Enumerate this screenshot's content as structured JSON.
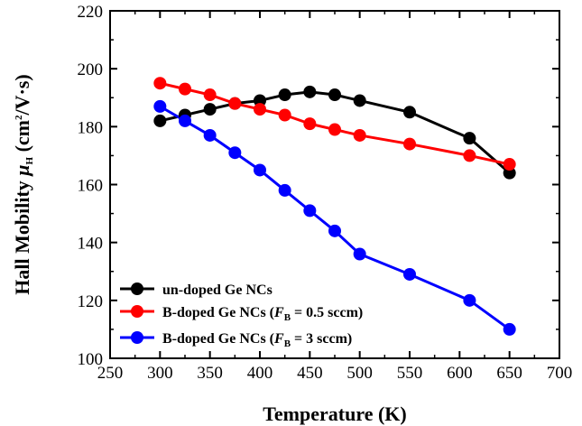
{
  "chart_data": {
    "type": "line",
    "xlabel": "Temperature (K)",
    "ylabel": {
      "prefix": "Hall Mobility ",
      "symbol": "μ",
      "symbol_sub": "H",
      "unit_open": " (cm",
      "unit_sup": "2",
      "unit_close": "/V·s)"
    },
    "xlim": [
      250,
      700
    ],
    "ylim": [
      100,
      220
    ],
    "x_ticks": [
      "250",
      "300",
      "350",
      "400",
      "450",
      "500",
      "550",
      "600",
      "650",
      "700"
    ],
    "y_ticks": [
      "100",
      "120",
      "140",
      "160",
      "180",
      "200",
      "220"
    ],
    "grid": false,
    "legend_position": "bottom-left",
    "series": [
      {
        "name": "un-doped Ge NCs",
        "legend": {
          "text": "un-doped Ge NCs"
        },
        "color": "#000000",
        "x": [
          300,
          325,
          350,
          375,
          400,
          425,
          450,
          475,
          500,
          550,
          610,
          650
        ],
        "y": [
          182,
          184,
          186,
          188,
          189,
          191,
          192,
          191,
          189,
          185,
          176,
          164
        ]
      },
      {
        "name": "B-doped Ge NCs (FB = 0.5 sccm)",
        "legend": {
          "pre": "B-doped Ge NCs (",
          "var": "F",
          "sub": "B",
          "post": " = 0.5 sccm)"
        },
        "color": "#ff0000",
        "x": [
          300,
          325,
          350,
          375,
          400,
          425,
          450,
          475,
          500,
          550,
          610,
          650
        ],
        "y": [
          195,
          193,
          191,
          188,
          186,
          184,
          181,
          179,
          177,
          174,
          170,
          167
        ]
      },
      {
        "name": "B-doped Ge NCs (FB = 3 sccm)",
        "legend": {
          "pre": "B-doped Ge NCs (",
          "var": "F",
          "sub": "B",
          "post": " = 3 sccm)"
        },
        "color": "#0000ff",
        "x": [
          300,
          325,
          350,
          375,
          400,
          425,
          450,
          475,
          500,
          550,
          610,
          650
        ],
        "y": [
          187,
          182,
          177,
          171,
          165,
          158,
          151,
          144,
          136,
          129,
          120,
          110
        ]
      }
    ]
  }
}
